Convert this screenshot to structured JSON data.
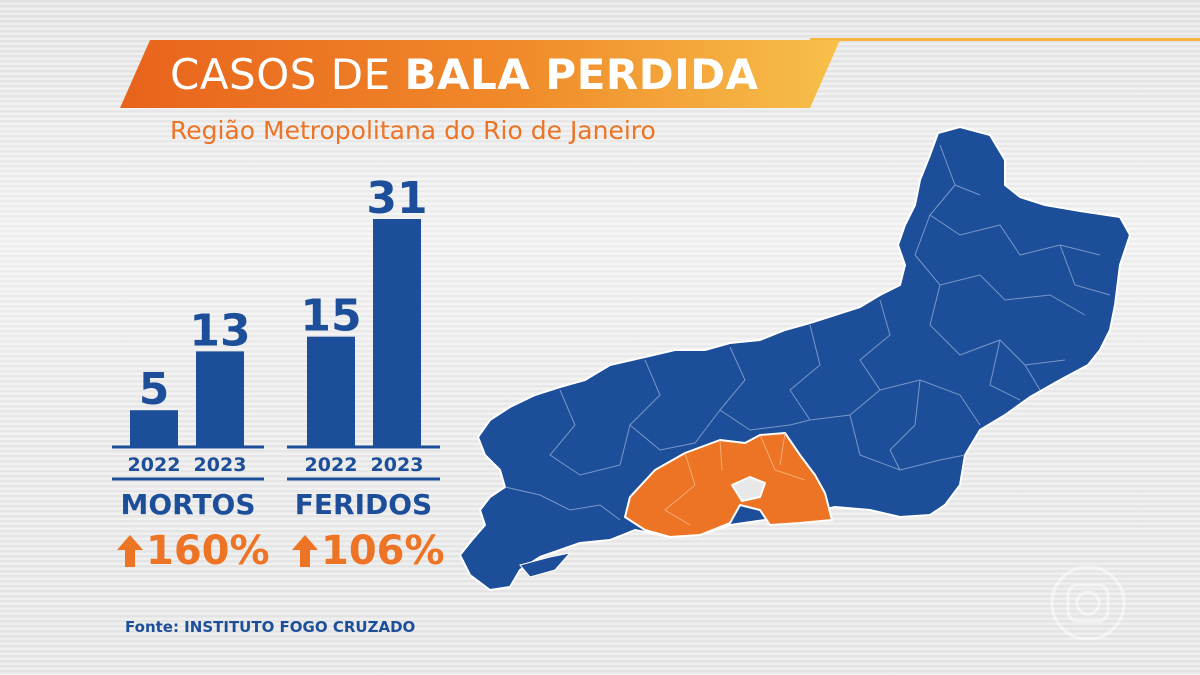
{
  "title": {
    "regular": "CASOS DE ",
    "bold": "BALA PERDIDA"
  },
  "subtitle": "Região Metropolitana do Rio de Janeiro",
  "colors": {
    "blue": "#1d4e9a",
    "orange": "#ec7424",
    "gold": "#f5b43c"
  },
  "chart_data": [
    {
      "type": "bar",
      "categories": [
        "2022",
        "2023"
      ],
      "values": [
        5,
        13
      ],
      "xlabel": "MORTOS",
      "change": "160%"
    },
    {
      "type": "bar",
      "categories": [
        "2022",
        "2023"
      ],
      "values": [
        15,
        31
      ],
      "xlabel": "FERIDOS",
      "change": "106%"
    }
  ],
  "source": "Fonte: INSTITUTO FOGO CRUZADO",
  "map": {
    "highlighted_region": "Região Metropolitana",
    "icons": [
      "rio-state-map-icon"
    ]
  },
  "logo_icon": "globo-logo-icon"
}
